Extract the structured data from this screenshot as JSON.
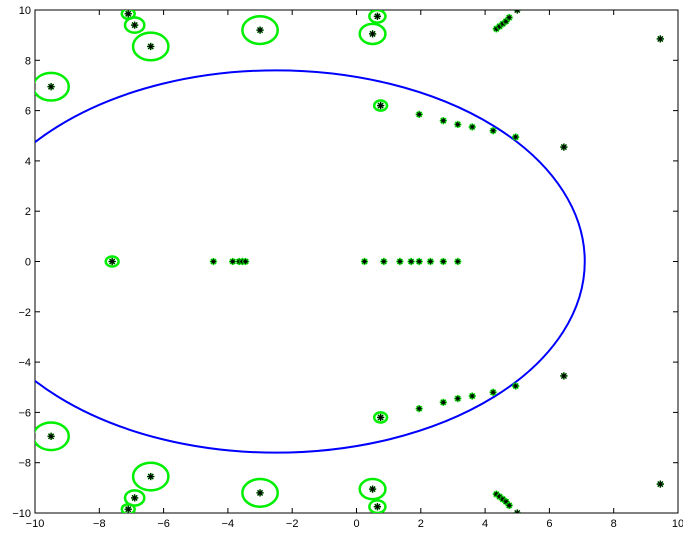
{
  "chart_data": {
    "type": "scatter",
    "title": "",
    "xlabel": "",
    "ylabel": "",
    "xlim": [
      -10,
      10
    ],
    "ylim": [
      -10,
      10
    ],
    "grid": false,
    "x_ticks": [
      -10,
      -8,
      -6,
      -4,
      -2,
      0,
      2,
      4,
      6,
      8,
      10
    ],
    "y_ticks": [
      -10,
      -8,
      -6,
      -4,
      -2,
      0,
      2,
      4,
      6,
      8,
      10
    ],
    "x_tick_labels": [
      "−10",
      "−8",
      "−6",
      "−4",
      "−2",
      "0",
      "2",
      "4",
      "6",
      "8",
      "10"
    ],
    "y_tick_labels": [
      "−10",
      "−8",
      "−6",
      "−4",
      "−2",
      "0",
      "2",
      "4",
      "6",
      "8",
      "10"
    ],
    "colors": {
      "ellipse": "#0000ff",
      "circles": "#00ee00",
      "green_points": "#00dd00",
      "stars": "#000000"
    },
    "ellipse": {
      "center": [
        -2.5,
        0
      ],
      "semi_axes": [
        9.6,
        7.6
      ]
    },
    "circles": [
      {
        "x": -9.5,
        "y": 6.95,
        "r": 0.55
      },
      {
        "x": -9.5,
        "y": -6.95,
        "r": 0.55
      },
      {
        "x": -6.4,
        "y": 8.55,
        "r": 0.55
      },
      {
        "x": -6.4,
        "y": -8.55,
        "r": 0.55
      },
      {
        "x": -3.0,
        "y": 9.2,
        "r": 0.55
      },
      {
        "x": -3.0,
        "y": -9.2,
        "r": 0.55
      },
      {
        "x": -6.9,
        "y": 9.4,
        "r": 0.3
      },
      {
        "x": -6.9,
        "y": -9.4,
        "r": 0.3
      },
      {
        "x": -7.1,
        "y": 9.85,
        "r": 0.2
      },
      {
        "x": -7.1,
        "y": -9.85,
        "r": 0.2
      },
      {
        "x": 0.5,
        "y": 9.05,
        "r": 0.4
      },
      {
        "x": 0.5,
        "y": -9.05,
        "r": 0.4
      },
      {
        "x": 0.65,
        "y": 9.75,
        "r": 0.25
      },
      {
        "x": 0.65,
        "y": -9.75,
        "r": 0.25
      },
      {
        "x": 0.75,
        "y": 6.2,
        "r": 0.2
      },
      {
        "x": 0.75,
        "y": -6.2,
        "r": 0.2
      },
      {
        "x": -7.6,
        "y": 0,
        "r": 0.2
      }
    ],
    "star_points": [
      {
        "x": -9.5,
        "y": 6.95
      },
      {
        "x": -9.5,
        "y": -6.95
      },
      {
        "x": -6.4,
        "y": 8.55
      },
      {
        "x": -6.4,
        "y": -8.55
      },
      {
        "x": -3.0,
        "y": 9.2
      },
      {
        "x": -3.0,
        "y": -9.2
      },
      {
        "x": -6.9,
        "y": 9.4
      },
      {
        "x": -6.9,
        "y": -9.4
      },
      {
        "x": -7.1,
        "y": 9.85
      },
      {
        "x": -7.1,
        "y": -9.85
      },
      {
        "x": 0.5,
        "y": 9.05
      },
      {
        "x": 0.5,
        "y": -9.05
      },
      {
        "x": 0.65,
        "y": 9.75
      },
      {
        "x": 0.65,
        "y": -9.75
      },
      {
        "x": 0.75,
        "y": 6.2
      },
      {
        "x": 0.75,
        "y": -6.2
      },
      {
        "x": -7.6,
        "y": 0
      },
      {
        "x": 6.45,
        "y": 4.55
      },
      {
        "x": 6.45,
        "y": -4.55
      },
      {
        "x": 9.45,
        "y": 8.85
      },
      {
        "x": 9.45,
        "y": -8.85
      },
      {
        "x": 5.0,
        "y": 10.0
      },
      {
        "x": 5.0,
        "y": -10.0
      }
    ],
    "green_star_points": [
      {
        "x": 1.95,
        "y": 5.85
      },
      {
        "x": 1.95,
        "y": -5.85
      },
      {
        "x": 2.7,
        "y": 5.6
      },
      {
        "x": 2.7,
        "y": -5.6
      },
      {
        "x": 3.15,
        "y": 5.45
      },
      {
        "x": 3.15,
        "y": -5.45
      },
      {
        "x": 3.6,
        "y": 5.35
      },
      {
        "x": 3.6,
        "y": -5.35
      },
      {
        "x": 4.25,
        "y": 5.2
      },
      {
        "x": 4.25,
        "y": -5.2
      },
      {
        "x": 4.95,
        "y": 4.95
      },
      {
        "x": 4.95,
        "y": -4.95
      },
      {
        "x": 4.35,
        "y": 9.25
      },
      {
        "x": 4.35,
        "y": -9.25
      },
      {
        "x": 4.45,
        "y": 9.35
      },
      {
        "x": 4.45,
        "y": -9.35
      },
      {
        "x": 4.55,
        "y": 9.45
      },
      {
        "x": 4.55,
        "y": -9.45
      },
      {
        "x": 4.65,
        "y": 9.55
      },
      {
        "x": 4.65,
        "y": -9.55
      },
      {
        "x": 4.75,
        "y": 9.7
      },
      {
        "x": 4.75,
        "y": -9.7
      },
      {
        "x": -4.45,
        "y": 0
      },
      {
        "x": -3.85,
        "y": 0
      },
      {
        "x": -3.65,
        "y": 0
      },
      {
        "x": -3.55,
        "y": 0
      },
      {
        "x": -3.45,
        "y": 0
      },
      {
        "x": 0.25,
        "y": 0
      },
      {
        "x": 0.85,
        "y": 0
      },
      {
        "x": 1.35,
        "y": 0
      },
      {
        "x": 1.7,
        "y": 0
      },
      {
        "x": 1.95,
        "y": 0
      },
      {
        "x": 2.3,
        "y": 0
      },
      {
        "x": 2.7,
        "y": 0
      },
      {
        "x": 3.15,
        "y": 0
      }
    ]
  }
}
